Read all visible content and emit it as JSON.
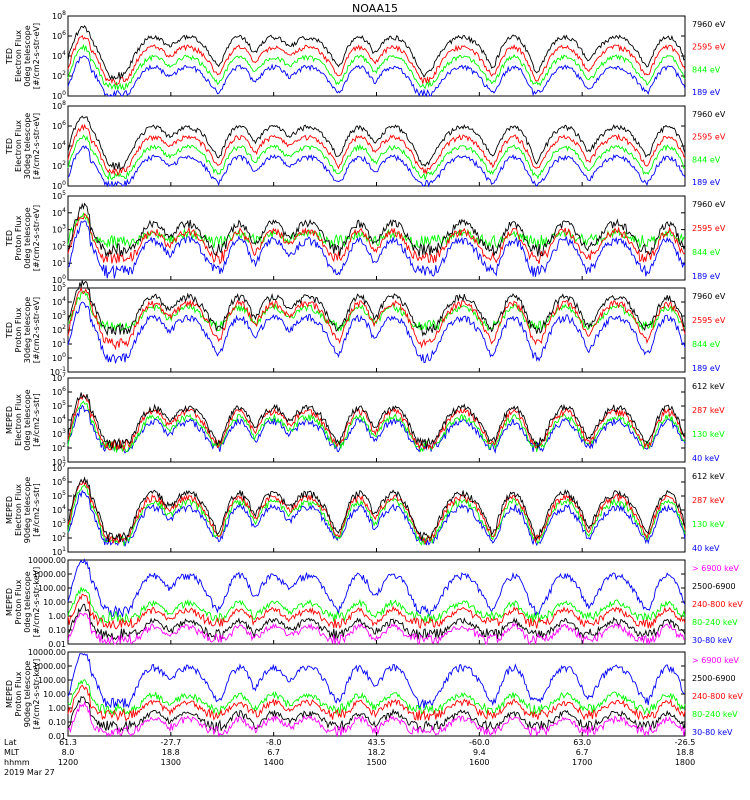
{
  "title": "NOAA15",
  "colors": {
    "black": "#000000",
    "blue": "#0000ff",
    "red": "#ff0000",
    "green": "#00cc00",
    "magenta": "#ff00ff",
    "axis": "#000000",
    "trace_green": "#00ff00"
  },
  "chart_data": [
    {
      "type": "line",
      "panel": "TED electron 0deg",
      "ylabel": [
        "TED",
        "Electron Flux",
        "0deg telescope",
        "[#/cm2-s-str-eV]"
      ],
      "ylim": [
        1,
        100000000.0
      ],
      "scale": "log",
      "ytick_labels": [
        "10^0",
        "10^2",
        "10^4",
        "10^6",
        "10^8"
      ],
      "legend": [
        {
          "label": "7960 eV",
          "color": "black"
        },
        {
          "label": "2595 eV",
          "color": "red"
        },
        {
          "label": "844 eV",
          "color": "green"
        },
        {
          "label": "189 eV",
          "color": "blue"
        }
      ],
      "series_profile": {
        "background_levels": [
          100.0,
          30,
          10,
          1.5
        ],
        "pass_peaks": [
          1000000.0,
          100000.0,
          10000.0,
          1000.0
        ]
      }
    },
    {
      "type": "line",
      "panel": "TED electron 30deg",
      "ylabel": [
        "TED",
        "Electron Flux",
        "30deg telescope",
        "[#/cm2-s-str-eV]"
      ],
      "ylim": [
        1,
        100000000.0
      ],
      "scale": "log",
      "ytick_labels": [
        "10^0",
        "10^2",
        "10^4",
        "10^6",
        "10^8"
      ],
      "legend": [
        {
          "label": "7960 eV",
          "color": "black"
        },
        {
          "label": "2595 eV",
          "color": "red"
        },
        {
          "label": "844 eV",
          "color": "green"
        },
        {
          "label": "189 eV",
          "color": "blue"
        }
      ],
      "series_profile": {
        "background_levels": [
          100.0,
          30,
          10,
          1.5
        ],
        "pass_peaks": [
          1000000.0,
          100000.0,
          10000.0,
          1000.0
        ]
      }
    },
    {
      "type": "line",
      "panel": "TED proton 0deg",
      "ylabel": [
        "TED",
        "Proton Flux",
        "0deg telescope",
        "[#/cm2-s-str-eV]"
      ],
      "ylim": [
        1,
        100000.0
      ],
      "scale": "log",
      "ytick_labels": [
        "10^0",
        "10^1",
        "10^2",
        "10^3",
        "10^4",
        "10^5"
      ],
      "legend": [
        {
          "label": "7960 eV",
          "color": "black"
        },
        {
          "label": "2595 eV",
          "color": "red"
        },
        {
          "label": "844 eV",
          "color": "green"
        },
        {
          "label": "189 eV",
          "color": "blue"
        }
      ],
      "series_profile": {
        "background_levels": [
          60,
          20,
          200,
          3
        ],
        "pass_peaks": [
          3000.0,
          1000.0,
          500.0,
          300.0
        ]
      }
    },
    {
      "type": "line",
      "panel": "TED proton 30deg",
      "ylabel": [
        "TED",
        "Proton Flux",
        "30deg telescope",
        "[#/cm2-s-str-eV]"
      ],
      "ylim": [
        0.1,
        100000.0
      ],
      "scale": "log",
      "ytick_labels": [
        "10^-1",
        "10^0",
        "10^1",
        "10^2",
        "10^3",
        "10^4",
        "10^5"
      ],
      "legend": [
        {
          "label": "7960 eV",
          "color": "black"
        },
        {
          "label": "2595 eV",
          "color": "red"
        },
        {
          "label": "844 eV",
          "color": "green"
        },
        {
          "label": "189 eV",
          "color": "blue"
        }
      ],
      "series_profile": {
        "background_levels": [
          100,
          10,
          200,
          1
        ],
        "pass_peaks": [
          30000.0,
          10000.0,
          5000.0,
          1000.0
        ]
      }
    },
    {
      "type": "line",
      "panel": "MEPED electron 0deg",
      "ylabel": [
        "MEPED",
        "Electron Flux",
        "0deg telescope",
        "[#/cm2-s-str]"
      ],
      "ylim": [
        10,
        10000000.0
      ],
      "scale": "log",
      "ytick_labels": [
        "10^1",
        "10^2",
        "10^3",
        "10^4",
        "10^5",
        "10^6",
        "10^7"
      ],
      "legend": [
        {
          "label": "612 keV",
          "color": "black"
        },
        {
          "label": "287 keV",
          "color": "red"
        },
        {
          "label": "130 keV",
          "color": "green"
        },
        {
          "label": "40 keV",
          "color": "blue"
        }
      ],
      "series_profile": {
        "background_levels": [
          200,
          150,
          120,
          100
        ],
        "pass_peaks": [
          100000.0,
          50000.0,
          20000.0,
          10000.0
        ]
      }
    },
    {
      "type": "line",
      "panel": "MEPED electron 90deg",
      "ylabel": [
        "MEPED",
        "Electron Flux",
        "90deg telescope",
        "[#/cm2-s-str]"
      ],
      "ylim": [
        10,
        10000000.0
      ],
      "scale": "log",
      "ytick_labels": [
        "10^1",
        "10^2",
        "10^3",
        "10^4",
        "10^5",
        "10^6",
        "10^7"
      ],
      "legend": [
        {
          "label": "612 keV",
          "color": "black"
        },
        {
          "label": "287 keV",
          "color": "red"
        },
        {
          "label": "130 keV",
          "color": "green"
        },
        {
          "label": "40 keV",
          "color": "blue"
        }
      ],
      "series_profile": {
        "background_levels": [
          100,
          80,
          60,
          50
        ],
        "pass_peaks": [
          200000.0,
          100000.0,
          50000.0,
          20000.0
        ]
      }
    },
    {
      "type": "line",
      "panel": "MEPED proton 0deg",
      "ylabel": [
        "MEPED",
        "Proton Flux",
        "0deg telescope",
        "[#/cm2-s-str-keV]"
      ],
      "ylim": [
        0.01,
        10000
      ],
      "scale": "log",
      "ytick_labels": [
        "0.01",
        "0.10",
        "1.00",
        "10.00",
        "100.00",
        "1000.00",
        "10000.00"
      ],
      "legend": [
        {
          "label": "> 6900 keV",
          "color": "magenta"
        },
        {
          "label": "2500-6900",
          "color": "black"
        },
        {
          "label": "240-800 keV",
          "color": "red"
        },
        {
          "label": "80-240 keV",
          "color": "green"
        },
        {
          "label": "30-80 keV",
          "color": "blue"
        }
      ],
      "series_profile": {
        "background_levels": [
          0.02,
          0.05,
          0.3,
          0.8,
          2
        ],
        "pass_peaks": [
          0.2,
          0.5,
          3,
          10,
          1000
        ]
      }
    },
    {
      "type": "line",
      "panel": "MEPED proton 90deg",
      "ylabel": [
        "MEPED",
        "Proton Flux",
        "90deg telescope",
        "[#/cm2-s-str-keV]"
      ],
      "ylim": [
        0.01,
        10000
      ],
      "scale": "log",
      "ytick_labels": [
        "0.01",
        "0.10",
        "1.00",
        "10.00",
        "100.00",
        "1000.00",
        "10000.00"
      ],
      "legend": [
        {
          "label": "> 6900 keV",
          "color": "magenta"
        },
        {
          "label": "2500-6900",
          "color": "black"
        },
        {
          "label": "240-800 keV",
          "color": "red"
        },
        {
          "label": "80-240 keV",
          "color": "green"
        },
        {
          "label": "30-80 keV",
          "color": "blue"
        }
      ],
      "series_profile": {
        "background_levels": [
          0.02,
          0.05,
          0.3,
          0.8,
          2
        ],
        "pass_peaks": [
          0.2,
          0.5,
          3,
          10,
          1000
        ]
      }
    }
  ],
  "x_axis": {
    "row_labels": [
      "Lat",
      "MLT",
      "hhmm"
    ],
    "date": "2019 Mar 27",
    "ticks": [
      {
        "lat": "61.3",
        "mlt": "8.0",
        "hhmm": "1200"
      },
      {
        "lat": "-27.7",
        "mlt": "18.8",
        "hhmm": "1300"
      },
      {
        "lat": "-8.0",
        "mlt": "6.7",
        "hhmm": "1400"
      },
      {
        "lat": "43.5",
        "mlt": "18.2",
        "hhmm": "1500"
      },
      {
        "lat": "-60.0",
        "mlt": "9.4",
        "hhmm": "1600"
      },
      {
        "lat": "63.0",
        "mlt": "6.7",
        "hhmm": "1700"
      },
      {
        "lat": "-26.5",
        "mlt": "18.8",
        "hhmm": "1800"
      }
    ],
    "pass_centers_hhmm": [
      "1210",
      "1250",
      "1310",
      "1340",
      "1400",
      "1420",
      "1450",
      "1510",
      "1550",
      "1620",
      "1650",
      "1720",
      "1750"
    ]
  }
}
